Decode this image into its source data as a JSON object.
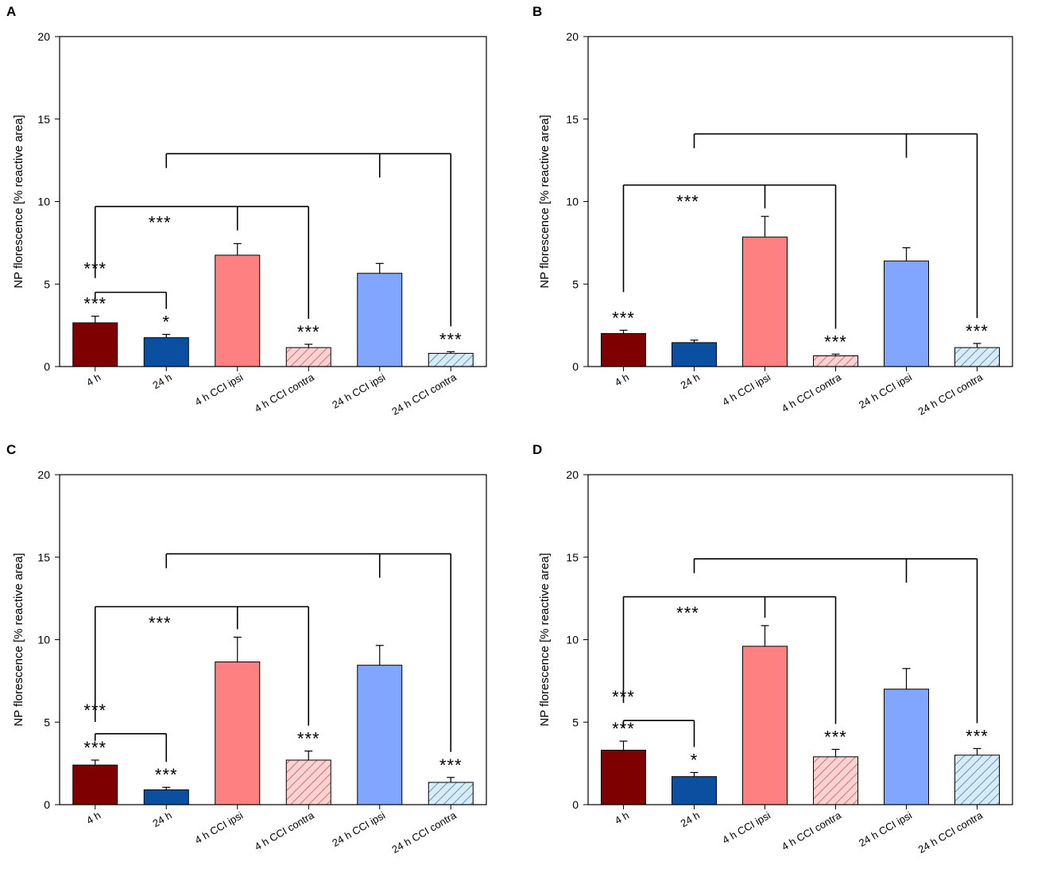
{
  "chart_data": [
    {
      "panel": "A",
      "type": "bar",
      "ylabel": "NP florescence [% reactive area]",
      "ylim": [
        0,
        20
      ],
      "yticks": [
        0,
        5,
        10,
        15,
        20
      ],
      "categories": [
        "4 h",
        "24 h",
        "4 h CCI ipsi",
        "4 h CCI contra",
        "24 h CCI ipsi",
        "24 h CCI contra"
      ],
      "values": [
        2.65,
        1.75,
        6.75,
        1.15,
        5.65,
        0.8
      ],
      "errors": [
        0.4,
        0.2,
        0.7,
        0.2,
        0.6,
        0.1
      ],
      "significance": [
        "***",
        "*",
        "",
        "***",
        "",
        "***"
      ],
      "brackets": [
        {
          "from": 0,
          "to": [
            1
          ],
          "level": 4.5,
          "label": "***"
        },
        {
          "from": 0,
          "to": [
            2,
            3
          ],
          "level": 9.7,
          "label": "***"
        },
        {
          "from": 1,
          "to": [
            4,
            5
          ],
          "level": 12.9,
          "label": ""
        }
      ]
    },
    {
      "panel": "B",
      "type": "bar",
      "ylabel": "NP florescence [% reactive area]",
      "ylim": [
        0,
        20
      ],
      "yticks": [
        0,
        5,
        10,
        15,
        20
      ],
      "categories": [
        "4 h",
        "24 h",
        "4 h CCI ipsi",
        "4 h CCI contra",
        "24 h CCI ipsi",
        "24 h CCI contra"
      ],
      "values": [
        2.0,
        1.45,
        7.85,
        0.65,
        6.4,
        1.15
      ],
      "errors": [
        0.2,
        0.15,
        1.25,
        0.1,
        0.8,
        0.25
      ],
      "significance": [
        "***",
        "",
        "",
        "***",
        "",
        "***"
      ],
      "brackets": [
        {
          "from": 0,
          "to": [
            2,
            3
          ],
          "level": 11.0,
          "label": "***"
        },
        {
          "from": 1,
          "to": [
            4,
            5
          ],
          "level": 14.1,
          "label": ""
        }
      ]
    },
    {
      "panel": "C",
      "type": "bar",
      "ylabel": "NP florescence [% reactive area]",
      "ylim": [
        0,
        20
      ],
      "yticks": [
        0,
        5,
        10,
        15,
        20
      ],
      "categories": [
        "4 h",
        "24 h",
        "4 h CCI ipsi",
        "4 h CCI contra",
        "24 h CCI ipsi",
        "24 h CCI contra"
      ],
      "values": [
        2.4,
        0.9,
        8.65,
        2.7,
        8.45,
        1.35
      ],
      "errors": [
        0.3,
        0.15,
        1.5,
        0.55,
        1.2,
        0.3
      ],
      "significance": [
        "***",
        "***",
        "",
        "***",
        "",
        "***"
      ],
      "brackets": [
        {
          "from": 0,
          "to": [
            1
          ],
          "level": 4.3,
          "label": "***"
        },
        {
          "from": 0,
          "to": [
            2,
            3
          ],
          "level": 12.0,
          "label": "***"
        },
        {
          "from": 1,
          "to": [
            4,
            5
          ],
          "level": 15.2,
          "label": ""
        }
      ]
    },
    {
      "panel": "D",
      "type": "bar",
      "ylabel": "NP florescence [% reactive area]",
      "ylim": [
        0,
        20
      ],
      "yticks": [
        0,
        5,
        10,
        15,
        20
      ],
      "categories": [
        "4 h",
        "24 h",
        "4 h CCI ipsi",
        "4 h CCI contra",
        "24 h CCI ipsi",
        "24 h CCI contra"
      ],
      "values": [
        3.3,
        1.7,
        9.6,
        2.9,
        7.0,
        3.0
      ],
      "errors": [
        0.55,
        0.25,
        1.25,
        0.45,
        1.25,
        0.4
      ],
      "significance": [
        "***",
        "*",
        "",
        "***",
        "",
        "***"
      ],
      "brackets": [
        {
          "from": 0,
          "to": [
            1
          ],
          "level": 5.1,
          "label": "***"
        },
        {
          "from": 0,
          "to": [
            2,
            3
          ],
          "level": 12.6,
          "label": "***"
        },
        {
          "from": 1,
          "to": [
            4,
            5
          ],
          "level": 14.9,
          "label": ""
        }
      ]
    }
  ],
  "colors": {
    "bar_4h": "#7f0000",
    "bar_24h": "#0a4fa0",
    "bar_4h_ipsi": "#ff8080",
    "bar_4h_contra_fill": "#ffd2d2",
    "bar_4h_contra_hatch": "#d07070",
    "bar_24h_ipsi": "#80a6ff",
    "bar_24h_contra_fill": "#d6ecfb",
    "bar_24h_contra_hatch": "#6a8fb0"
  }
}
